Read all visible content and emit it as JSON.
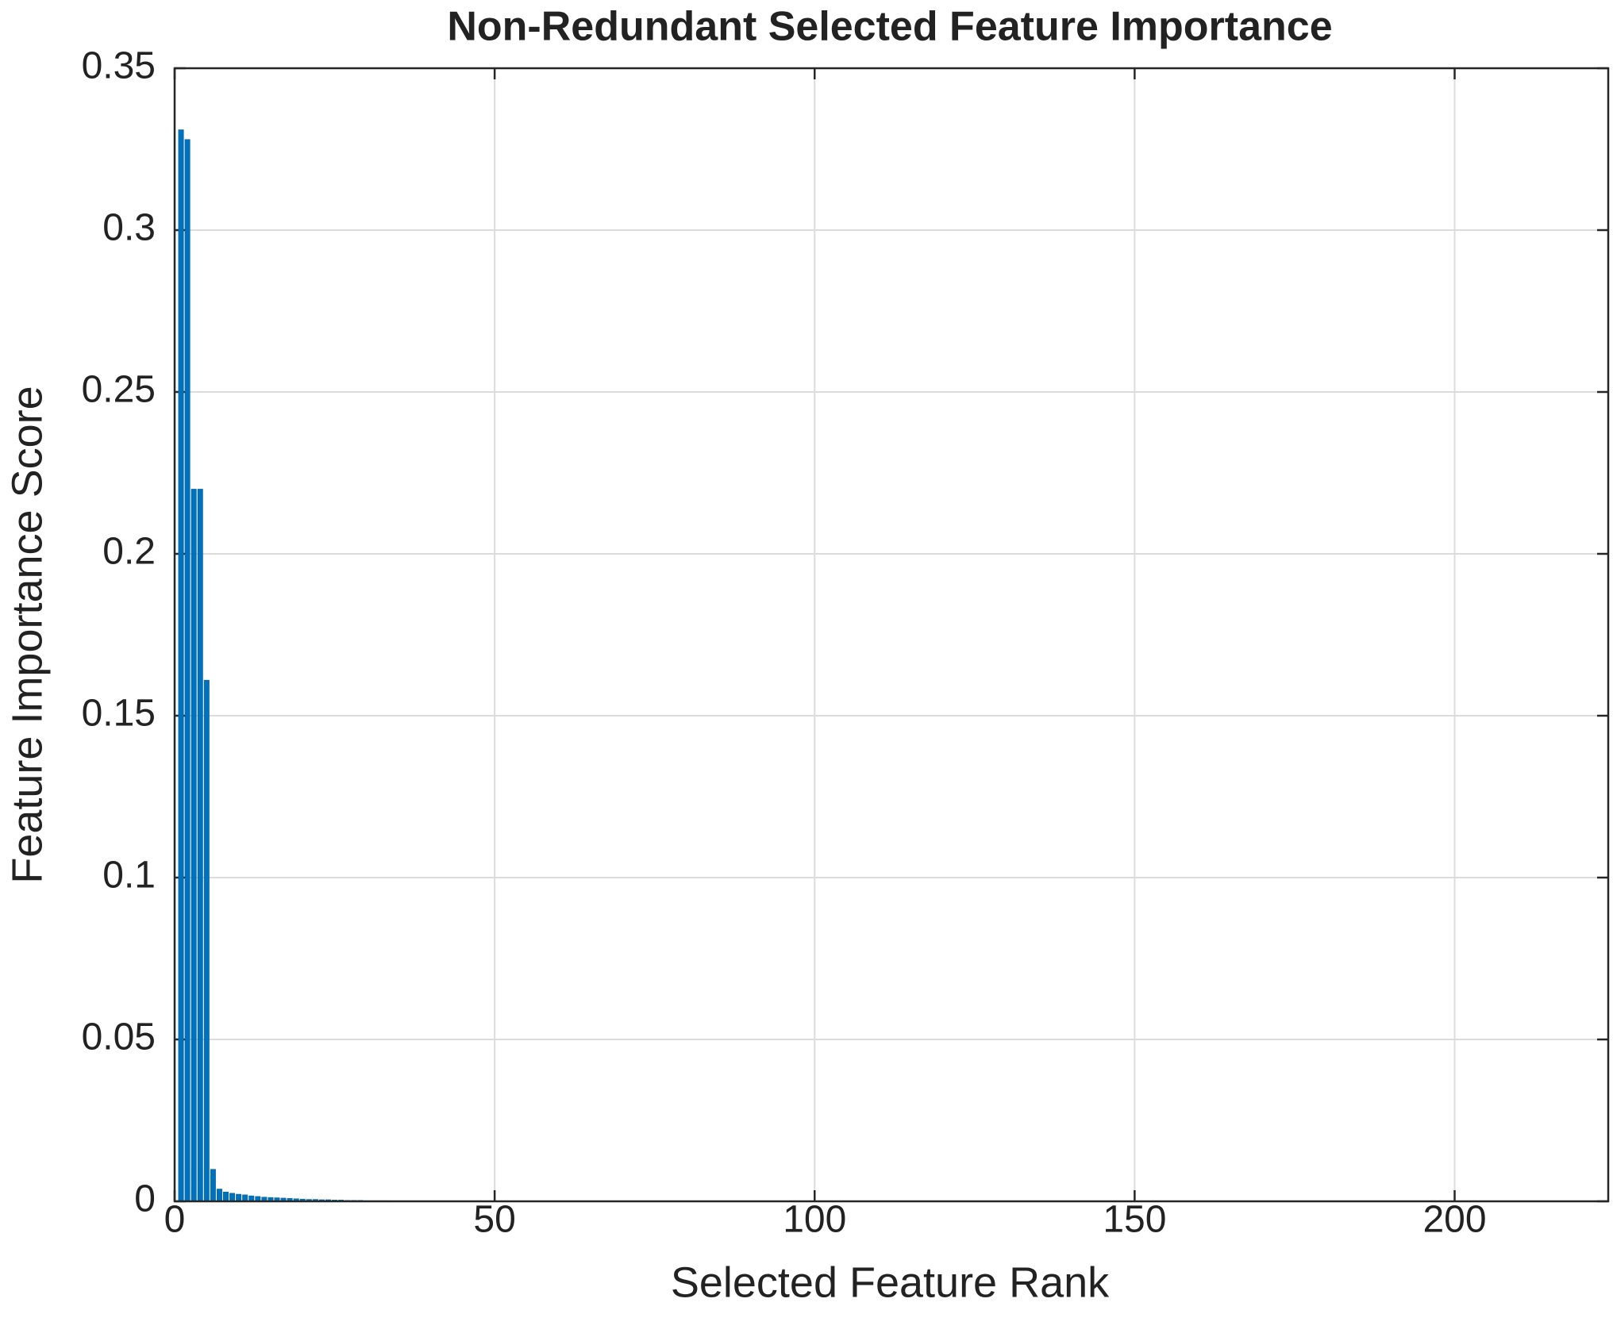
{
  "chart_data": {
    "type": "bar",
    "title": "Non-Redundant Selected Feature Importance",
    "x_label": "Selected Feature Rank",
    "y_label": "Feature Importance Score",
    "x": [
      1,
      2,
      3,
      4,
      5,
      6,
      7,
      8,
      9,
      10,
      11,
      12,
      13,
      14,
      15,
      16,
      17,
      18,
      19,
      20,
      21,
      22,
      23,
      24,
      25,
      26,
      27,
      28,
      29,
      30,
      31,
      32,
      33,
      34,
      35,
      36,
      37,
      38,
      39,
      40
    ],
    "values": [
      0.331,
      0.328,
      0.22,
      0.22,
      0.161,
      0.0099,
      0.0038,
      0.0029,
      0.0025,
      0.0022,
      0.002,
      0.0017,
      0.0015,
      0.0013,
      0.0012,
      0.0011,
      0.001,
      0.0009,
      0.0008,
      0.0007,
      0.0006,
      0.0006,
      0.0005,
      0.0005,
      0.0004,
      0.0004,
      0.0003,
      0.0003,
      0.0003,
      0.0002,
      0.0002,
      0.0002,
      0.0002,
      0.0001,
      0.0001,
      0.0001,
      0.0001,
      0.0001,
      0.0001,
      0.0001
    ],
    "color": "#0072bd",
    "xlim": [
      0,
      224
    ],
    "xticks": [
      0,
      50,
      100,
      150,
      200
    ],
    "ylim": [
      0,
      0.35
    ],
    "yticks": [
      0,
      0.05,
      0.1,
      0.15,
      0.2,
      0.25,
      0.3,
      0.35
    ],
    "grid": true
  }
}
